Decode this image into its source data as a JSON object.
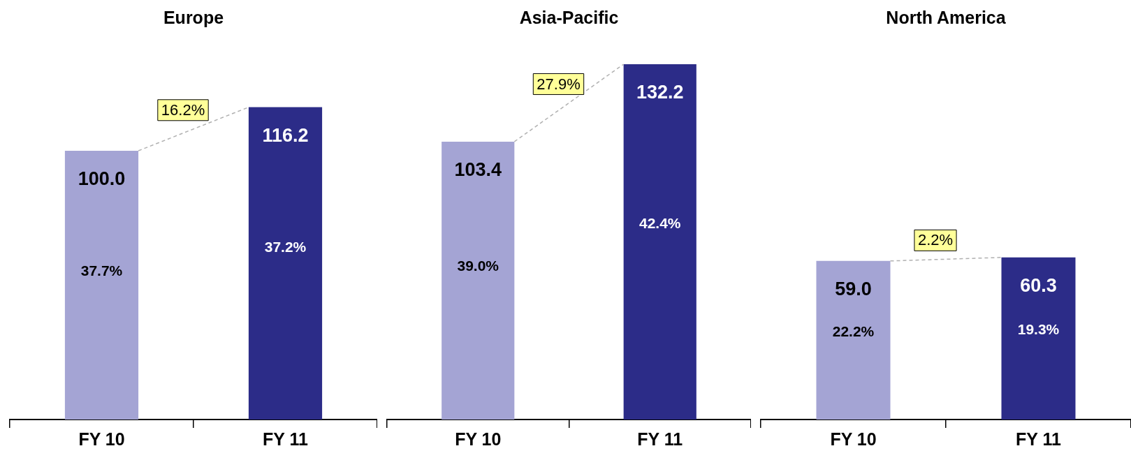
{
  "chart_data": [
    {
      "type": "bar",
      "title": "Europe",
      "categories": [
        "FY 10",
        "FY 11"
      ],
      "values": [
        100.0,
        116.2
      ],
      "value_labels": [
        "100.0",
        "116.2"
      ],
      "colors": [
        "#a4a4d4",
        "#2c2c88"
      ],
      "tick_labels": "x",
      "annotations": [
        "16.2%",
        "37.7%",
        "37.2%"
      ]
    },
    {
      "type": "bar",
      "title": "Asia-Pacific",
      "categories": [
        "FY 10",
        "FY 11"
      ],
      "values": [
        103.4,
        132.2
      ],
      "value_labels": [
        "103.4",
        "132.2"
      ],
      "colors": [
        "#a4a4d4",
        "#2c2c88"
      ],
      "tick_labels": "x",
      "annotations": [
        "27.9%",
        "39.0%",
        "42.4%"
      ]
    },
    {
      "type": "bar",
      "title": "North America",
      "categories": [
        "FY 10",
        "FY 11"
      ],
      "values": [
        59.0,
        60.3
      ],
      "value_labels": [
        "59.0",
        "60.3"
      ],
      "colors": [
        "#a4a4d4",
        "#2c2c88"
      ],
      "tick_labels": "x",
      "annotations": [
        "2.2%",
        "22.2%",
        "19.3%"
      ]
    }
  ]
}
